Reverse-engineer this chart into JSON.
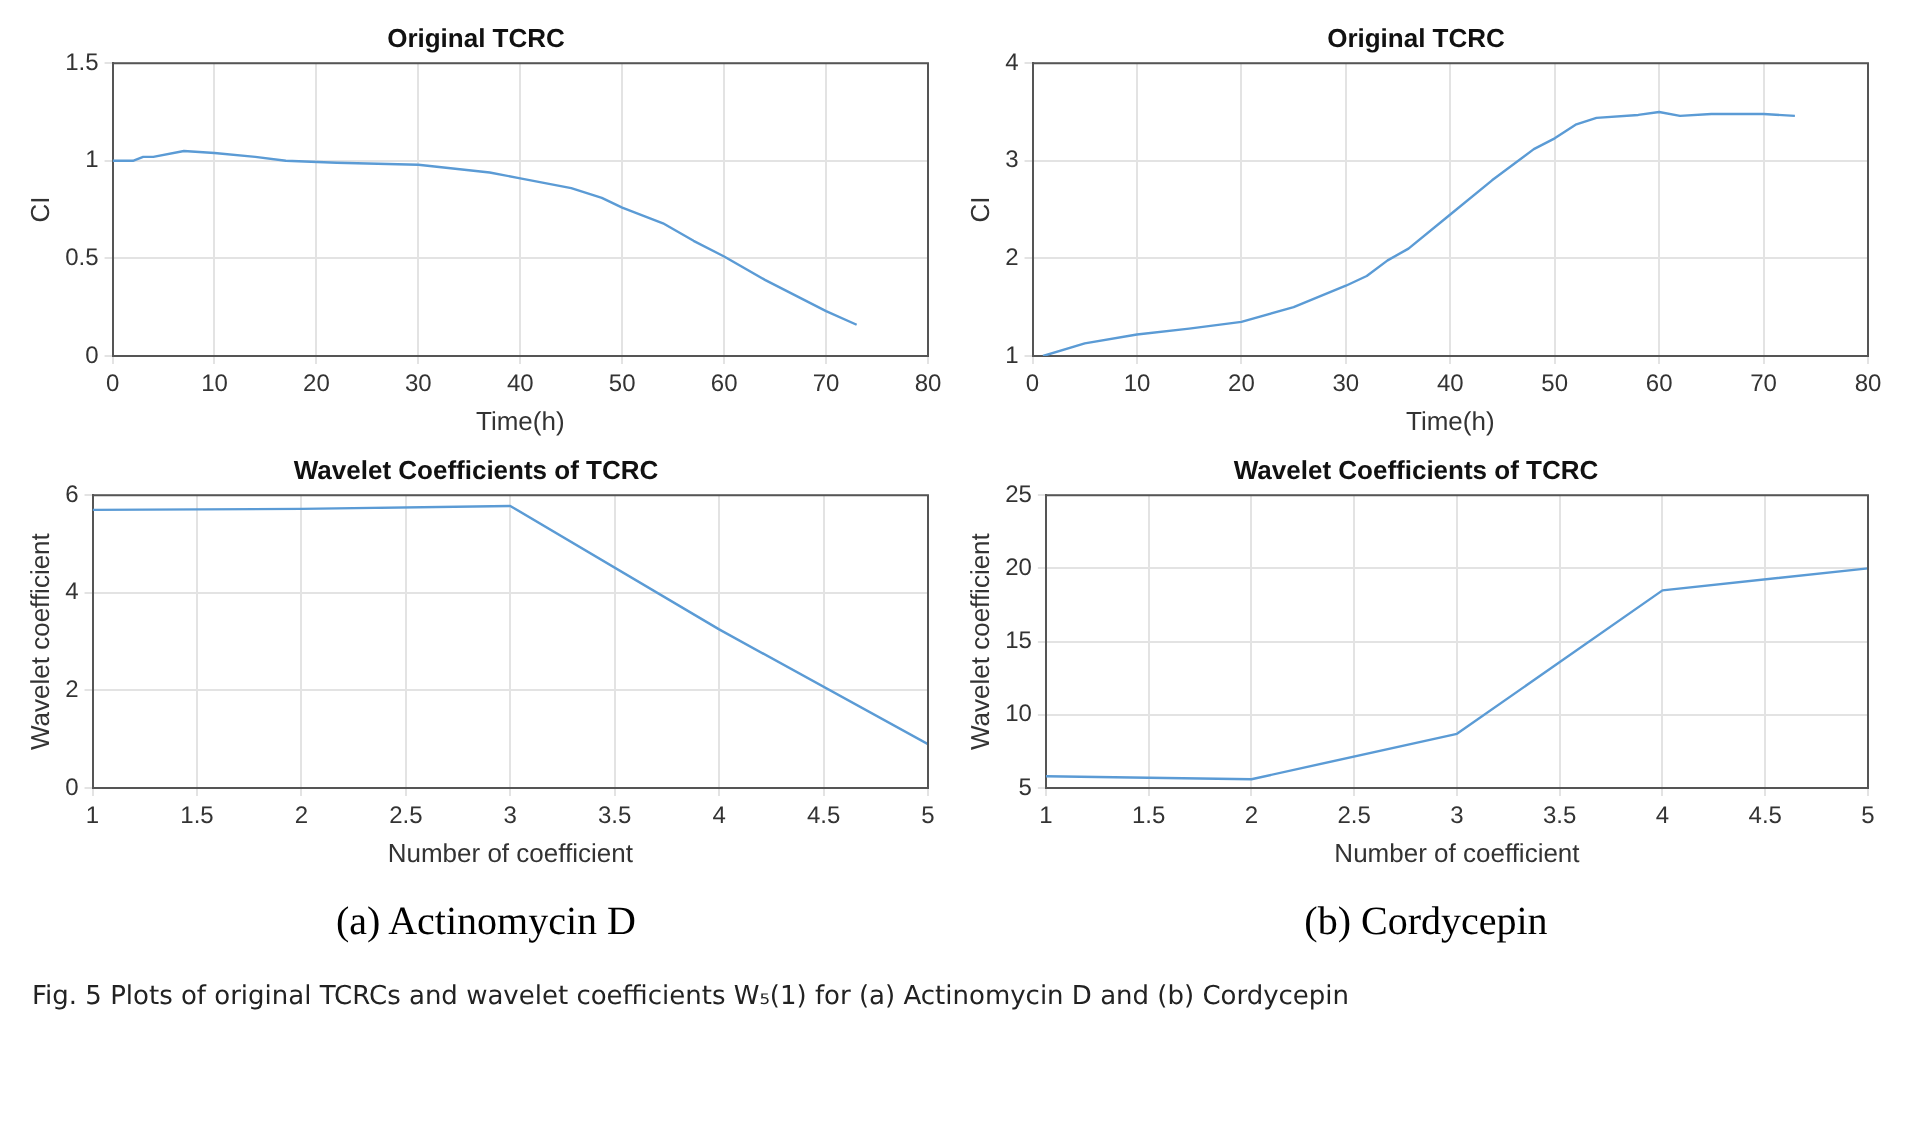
{
  "chart_data": [
    {
      "type": "line",
      "title": "Original TCRC",
      "xlabel": "Time(h)",
      "ylabel": "CI",
      "xlim": [
        0,
        80
      ],
      "xticks": [
        0,
        10,
        20,
        30,
        40,
        50,
        60,
        70,
        80
      ],
      "ylim": [
        0,
        1.5
      ],
      "yticks": [
        0,
        0.5,
        1,
        1.5
      ],
      "grid": true,
      "legend": false,
      "series": [
        {
          "color": "#5b9bd5",
          "x": [
            0,
            2,
            3,
            4,
            7,
            10,
            14,
            17,
            22,
            30,
            37,
            40,
            45,
            48,
            50,
            54,
            57,
            60,
            64,
            70,
            73
          ],
          "values": [
            1.0,
            1.0,
            1.02,
            1.02,
            1.05,
            1.04,
            1.02,
            1.0,
            0.99,
            0.98,
            0.94,
            0.91,
            0.86,
            0.81,
            0.76,
            0.68,
            0.59,
            0.51,
            0.39,
            0.23,
            0.16
          ]
        }
      ]
    },
    {
      "type": "line",
      "title": "Original TCRC",
      "xlabel": "Time(h)",
      "ylabel": "CI",
      "xlim": [
        0,
        80
      ],
      "xticks": [
        0,
        10,
        20,
        30,
        40,
        50,
        60,
        70,
        80
      ],
      "ylim": [
        1,
        4
      ],
      "yticks": [
        1,
        2,
        3,
        4
      ],
      "grid": true,
      "legend": false,
      "series": [
        {
          "color": "#5b9bd5",
          "x": [
            1,
            5,
            10,
            15,
            20,
            25,
            30,
            32,
            34,
            36,
            40,
            44,
            48,
            50,
            52,
            54,
            58,
            60,
            62,
            65,
            70,
            73
          ],
          "values": [
            1.0,
            1.13,
            1.22,
            1.28,
            1.35,
            1.5,
            1.72,
            1.82,
            1.98,
            2.1,
            2.45,
            2.8,
            3.12,
            3.23,
            3.37,
            3.44,
            3.47,
            3.5,
            3.46,
            3.48,
            3.48,
            3.46
          ]
        }
      ]
    },
    {
      "type": "line",
      "title": "Wavelet Coefficients of TCRC",
      "xlabel": "Number of coefficient",
      "ylabel": "Wavelet coefficient",
      "xlim": [
        1,
        5
      ],
      "xticks": [
        1,
        1.5,
        2,
        2.5,
        3,
        3.5,
        4,
        4.5,
        5
      ],
      "ylim": [
        0,
        6
      ],
      "yticks": [
        0,
        2,
        4,
        6
      ],
      "grid": true,
      "legend": false,
      "series": [
        {
          "color": "#5b9bd5",
          "x": [
            1,
            2,
            3,
            4,
            5
          ],
          "values": [
            5.7,
            5.72,
            5.78,
            3.25,
            0.9
          ]
        }
      ],
      "annotations": [
        "(a) Actinomycin D"
      ]
    },
    {
      "type": "line",
      "title": "Wavelet Coefficients of TCRC",
      "xlabel": "Number of coefficient",
      "ylabel": "Wavelet coefficient",
      "xlim": [
        1,
        5
      ],
      "xticks": [
        1,
        1.5,
        2,
        2.5,
        3,
        3.5,
        4,
        4.5,
        5
      ],
      "ylim": [
        5,
        25
      ],
      "yticks": [
        5,
        10,
        15,
        20,
        25
      ],
      "grid": true,
      "legend": false,
      "series": [
        {
          "color": "#5b9bd5",
          "x": [
            1,
            2,
            3,
            4,
            5
          ],
          "values": [
            5.8,
            5.6,
            8.7,
            18.5,
            20.0
          ]
        }
      ],
      "annotations": [
        "(b) Cordycepin",
        "Fig. 5  Plots of original TCRCs and wavelet coefficients W₅(1) for (a) Actinomycin D and (b) Cordycepin"
      ]
    }
  ]
}
